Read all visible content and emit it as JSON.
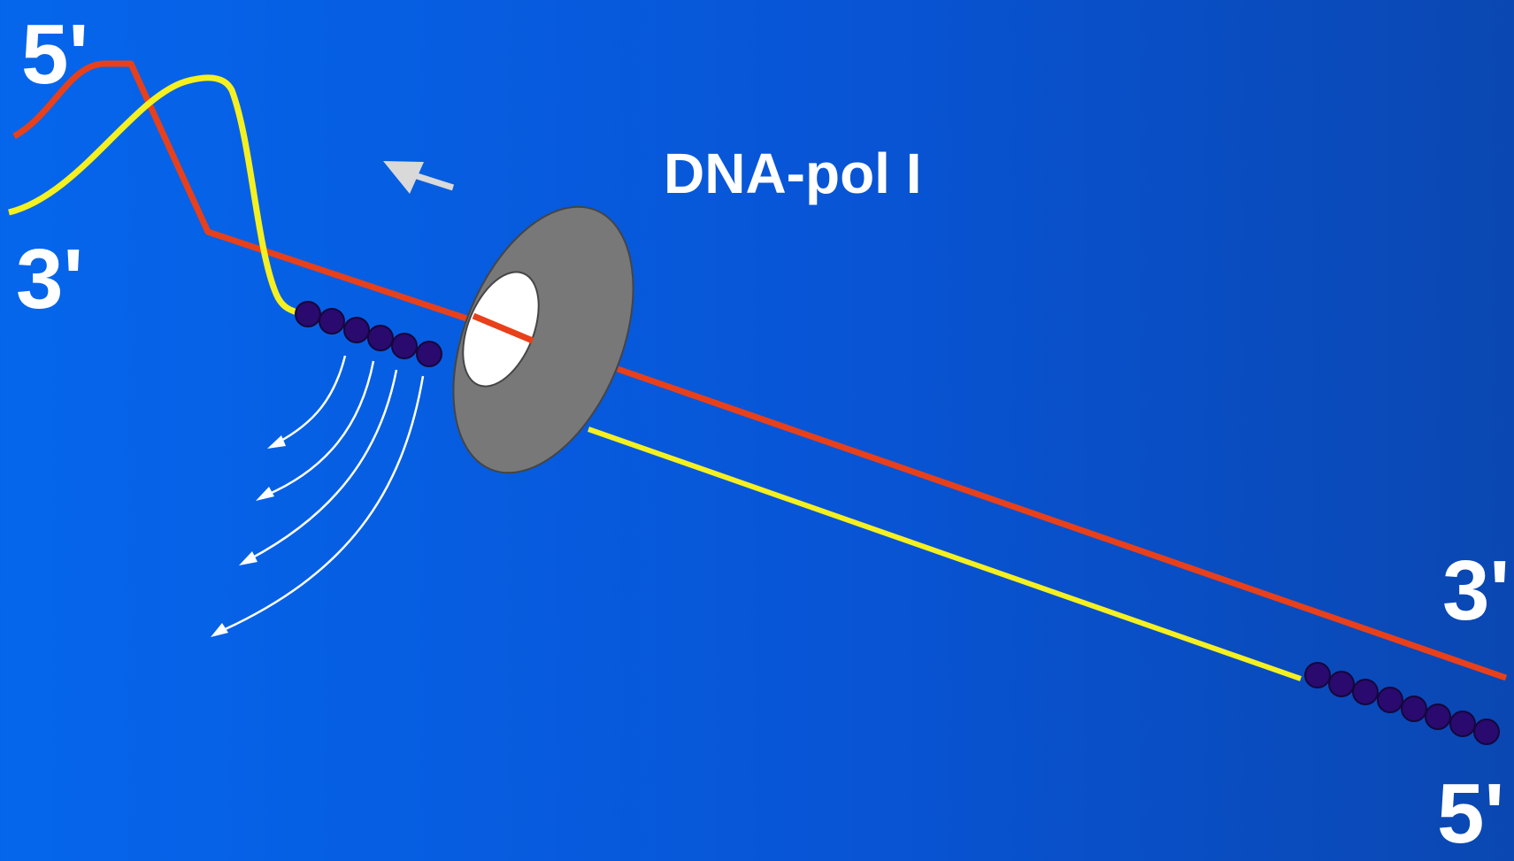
{
  "title": "DNA-pol I",
  "ends": {
    "top_left_upper": "5'",
    "top_left_lower": "3'",
    "bottom_right_upper": "3'",
    "bottom_right_lower": "5'"
  },
  "colors": {
    "background": "#0566ec",
    "template_strand": "#e8401a",
    "new_strand": "#f5f020",
    "nucleotide": "#2a0a6e",
    "enzyme": "#787878",
    "enzyme_hole": "#ffffff",
    "arrow": "#d9d9d9",
    "label": "#ffffff"
  },
  "elements": {
    "enzyme": "dna-polymerase-ring",
    "direction_arrow": "arrow-left-icon",
    "released_nucleotides": "curved-arrow-icons"
  }
}
